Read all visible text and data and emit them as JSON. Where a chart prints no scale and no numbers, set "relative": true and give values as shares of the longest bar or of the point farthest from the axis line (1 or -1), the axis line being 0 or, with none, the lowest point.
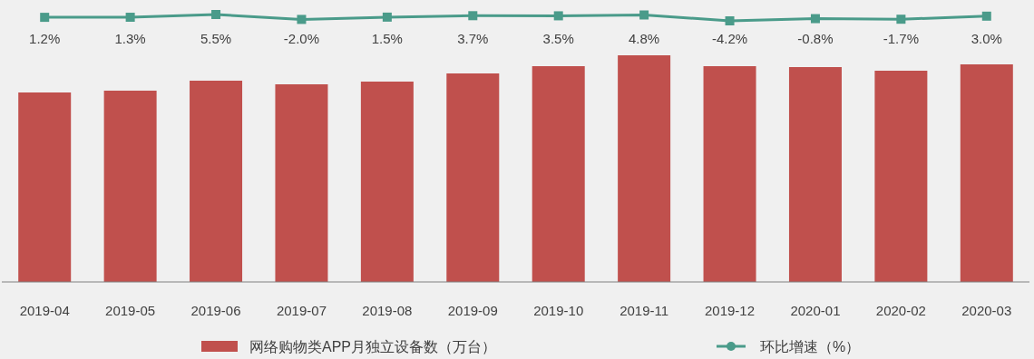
{
  "chart_data": [
    {
      "type": "line",
      "categories": [
        null,
        null,
        null,
        null,
        null,
        null,
        null,
        null,
        null,
        null,
        null,
        null
      ],
      "series": [
        {
          "name": "环比增速（%）",
          "color": "#4a9b8a",
          "values": [
            1.2,
            1.3,
            5.5,
            -2.0,
            1.5,
            3.7,
            3.5,
            4.8,
            -4.2,
            -0.8,
            -1.7,
            3.0
          ],
          "value_labels": [
            "1.2%",
            "1.3%",
            "5.5%",
            "-2.0%",
            "1.5%",
            "3.7%",
            "3.5%",
            "4.8%",
            "-4.2%",
            "-0.8%",
            "-1.7%",
            "3.0%"
          ]
        }
      ],
      "marker": "square",
      "legend": "bottom right"
    },
    {
      "type": "bar",
      "relative": true,
      "categories": [
        "2019-04",
        "2019-05",
        "2019-06",
        "2019-07",
        "2019-08",
        "2019-09",
        "2019-10",
        "2019-11",
        "2019-12",
        "2020-01",
        "2020-02",
        "2020-03"
      ],
      "series": [
        {
          "name": "网络购物类APP月独立设备数（万台）",
          "color": "#c0504d",
          "values": [
            0.836,
            0.844,
            0.888,
            0.872,
            0.884,
            0.92,
            0.952,
            1,
            0.952,
            0.948,
            0.932,
            0.96
          ]
        }
      ],
      "legend": "bottom left"
    }
  ]
}
